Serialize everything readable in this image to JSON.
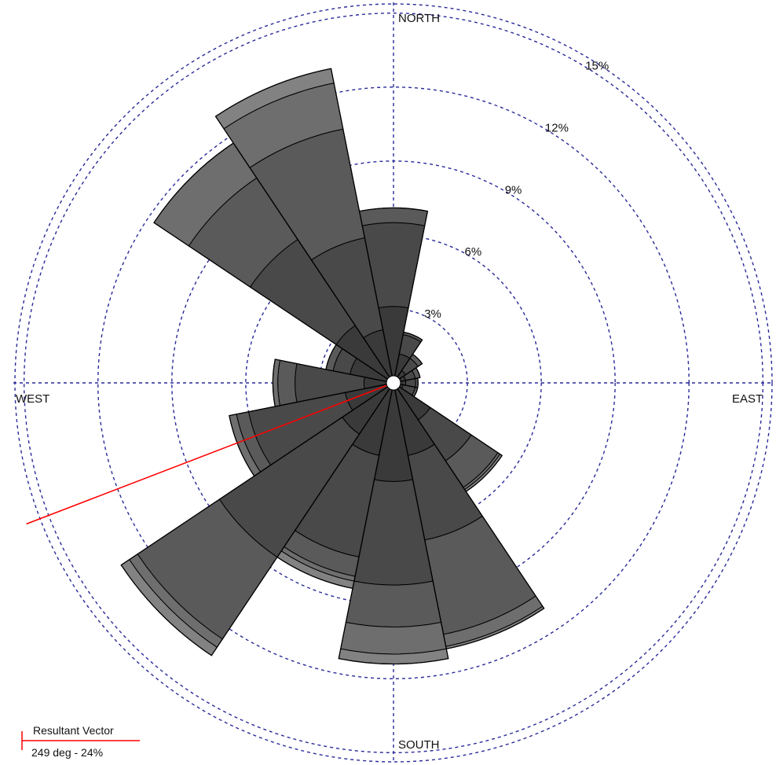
{
  "chart_data": {
    "type": "wind-rose",
    "directions": [
      "N",
      "NNE",
      "NE",
      "ENE",
      "E",
      "ESE",
      "SE",
      "SSE",
      "S",
      "SSW",
      "SW",
      "WSW",
      "W",
      "WNW",
      "NW",
      "NNW"
    ],
    "direction_degrees": [
      0,
      22.5,
      45,
      67.5,
      90,
      112.5,
      135,
      157.5,
      180,
      202.5,
      225,
      247.5,
      270,
      292.5,
      315,
      337.5
    ],
    "compass_labels": {
      "north": "NORTH",
      "east": "EAST",
      "south": "SOUTH",
      "west": "WEST"
    },
    "rings": [
      {
        "value": 3,
        "label": "3%"
      },
      {
        "value": 6,
        "label": "6%"
      },
      {
        "value": 9,
        "label": "9%"
      },
      {
        "value": 12,
        "label": "12%"
      },
      {
        "value": 15,
        "label": "15%"
      }
    ],
    "rmax": 15.5,
    "bin_colors": [
      "#3a3a3a",
      "#494949",
      "#5a5a5a",
      "#6e6e6e",
      "#828282",
      "#555555"
    ],
    "cumulative_frequencies": [
      [
        3.1,
        6.5,
        7.1,
        7.1,
        7.1,
        7.1
      ],
      [
        1.2,
        2.0,
        2.1,
        2.1,
        2.1,
        2.1
      ],
      [
        0.6,
        1.2,
        1.4,
        1.4,
        1.4,
        1.4
      ],
      [
        0.5,
        0.9,
        1.1,
        1.1,
        1.1,
        1.1
      ],
      [
        0.5,
        0.9,
        1.0,
        1.0,
        1.0,
        1.0
      ],
      [
        0.4,
        0.9,
        1.0,
        1.0,
        1.0,
        1.0
      ],
      [
        1.8,
        3.8,
        5.1,
        5.2,
        5.3,
        5.3
      ],
      [
        3.0,
        6.5,
        10.4,
        10.9,
        11.0,
        11.0
      ],
      [
        4.0,
        8.2,
        9.9,
        11.0,
        11.4,
        11.4
      ],
      [
        3.0,
        7.2,
        8.0,
        8.2,
        8.5,
        8.5
      ],
      [
        2.5,
        8.5,
        12.5,
        12.9,
        13.3,
        13.3
      ],
      [
        2.0,
        6.0,
        6.5,
        6.8,
        6.8,
        6.8
      ],
      [
        1.2,
        4.0,
        4.7,
        4.9,
        4.9,
        4.9
      ],
      [
        1.8,
        2.5,
        2.8,
        2.8,
        2.8,
        2.8
      ],
      [
        2.8,
        7.0,
        10.0,
        11.7,
        11.7,
        11.7
      ],
      [
        2.2,
        6.0,
        10.5,
        12.4,
        13.0,
        13.0
      ]
    ],
    "resultant_vector": {
      "title": "Resultant Vector",
      "label": "249 deg - 24%",
      "direction_deg": 249,
      "percent": 24,
      "color": "#ff0000"
    },
    "ring_color": "#2a2a99",
    "outline_color": "#000000"
  }
}
